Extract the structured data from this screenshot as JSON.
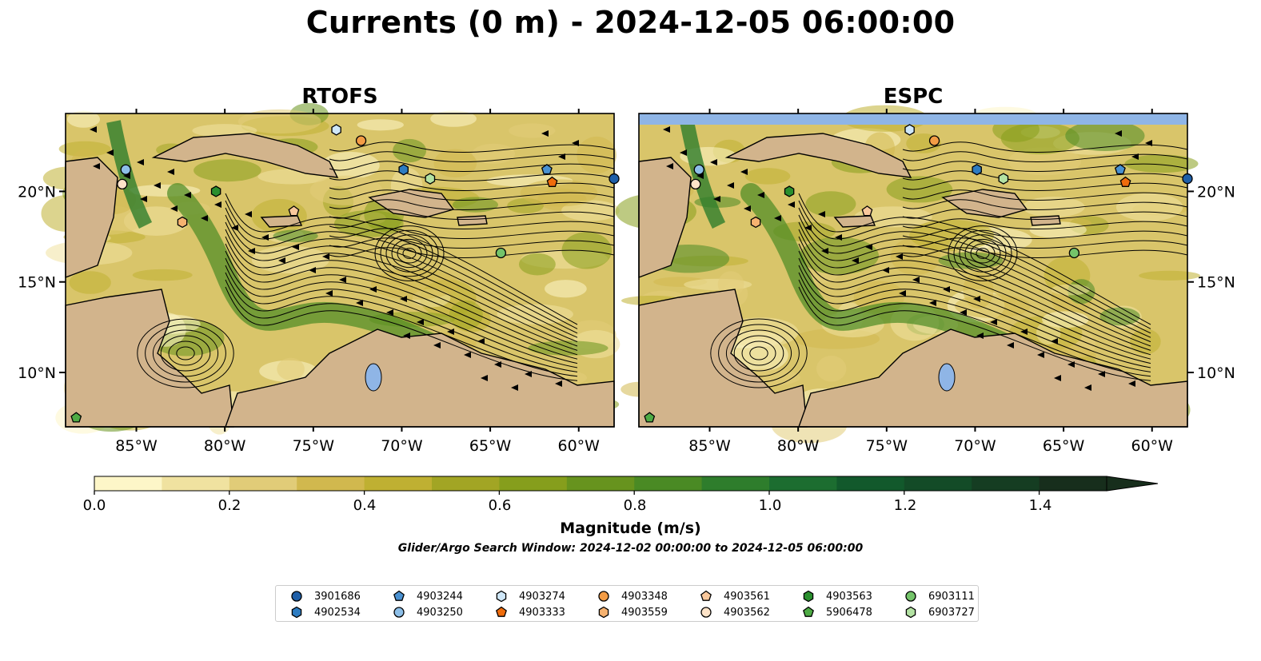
{
  "title": "Currents (0 m) - 2024-12-05 06:00:00",
  "panels": [
    {
      "title": "RTOFS"
    },
    {
      "title": "ESPC"
    }
  ],
  "map": {
    "lon_range": [
      -89,
      -58
    ],
    "lat_range": [
      7,
      24.3
    ],
    "lon_ticks": [
      "85°W",
      "80°W",
      "75°W",
      "70°W",
      "65°W",
      "60°W"
    ],
    "lat_ticks": [
      "20°N",
      "15°N",
      "10°N"
    ],
    "land_color": "#d2b48c",
    "water_color": "#8fb5e6"
  },
  "colorbar": {
    "label": "Magnitude (m/s)",
    "ticks": [
      "0.0",
      "0.2",
      "0.4",
      "0.6",
      "0.8",
      "1.0",
      "1.2",
      "1.4"
    ],
    "range": [
      0,
      1.5
    ],
    "extend": "max",
    "colors": [
      "#fdf6c8",
      "#f0e2a0",
      "#e1cc78",
      "#d1b84e",
      "#bfb032",
      "#a2a524",
      "#869e1c",
      "#67931e",
      "#4a8a24",
      "#2e7d2c",
      "#1c6d30",
      "#12592c",
      "#134b27",
      "#153d22",
      "#172e1c"
    ]
  },
  "search_window": "Glider/Argo Search Window: 2024-12-02 00:00:00 to 2024-12-05 06:00:00",
  "legend": [
    {
      "id": "3901686",
      "color": "#1f5fa8",
      "shape": "circle"
    },
    {
      "id": "4902534",
      "color": "#2d7cc1",
      "shape": "hexagon"
    },
    {
      "id": "4903244",
      "color": "#4a91d1",
      "shape": "pentagon"
    },
    {
      "id": "4903250",
      "color": "#8dbfe8",
      "shape": "circle"
    },
    {
      "id": "4903274",
      "color": "#cfe7f8",
      "shape": "hexagon"
    },
    {
      "id": "4903333",
      "color": "#ef6c0c",
      "shape": "pentagon"
    },
    {
      "id": "4903348",
      "color": "#f39c45",
      "shape": "circle"
    },
    {
      "id": "4903559",
      "color": "#f6b270",
      "shape": "hexagon"
    },
    {
      "id": "4903561",
      "color": "#f9c89c",
      "shape": "pentagon"
    },
    {
      "id": "4903562",
      "color": "#fde3c8",
      "shape": "circle"
    },
    {
      "id": "4903563",
      "color": "#2a8f2e",
      "shape": "hexagon"
    },
    {
      "id": "5906478",
      "color": "#4eab45",
      "shape": "pentagon"
    },
    {
      "id": "6903111",
      "color": "#74c46a",
      "shape": "circle"
    },
    {
      "id": "6903727",
      "color": "#b3e2a3",
      "shape": "hexagon"
    }
  ],
  "platforms": [
    {
      "id": "3901686",
      "lon": -58.0,
      "lat": 20.7
    },
    {
      "id": "4902534",
      "lon": -69.9,
      "lat": 21.2
    },
    {
      "id": "4903244",
      "lon": -61.8,
      "lat": 21.2
    },
    {
      "id": "4903250",
      "lon": -85.6,
      "lat": 21.2
    },
    {
      "id": "4903274",
      "lon": -73.7,
      "lat": 23.4
    },
    {
      "id": "4903333",
      "lon": -61.5,
      "lat": 20.5
    },
    {
      "id": "4903348",
      "lon": -72.3,
      "lat": 22.8
    },
    {
      "id": "4903559",
      "lon": -82.4,
      "lat": 18.3
    },
    {
      "id": "4903561",
      "lon": -76.1,
      "lat": 18.9
    },
    {
      "id": "4903562",
      "lon": -85.8,
      "lat": 20.4
    },
    {
      "id": "4903563",
      "lon": -80.5,
      "lat": 20.0
    },
    {
      "id": "5906478",
      "lon": -88.4,
      "lat": 7.5
    },
    {
      "id": "6903111",
      "lon": -64.4,
      "lat": 16.6
    },
    {
      "id": "6903727",
      "lon": -68.4,
      "lat": 20.7
    }
  ]
}
